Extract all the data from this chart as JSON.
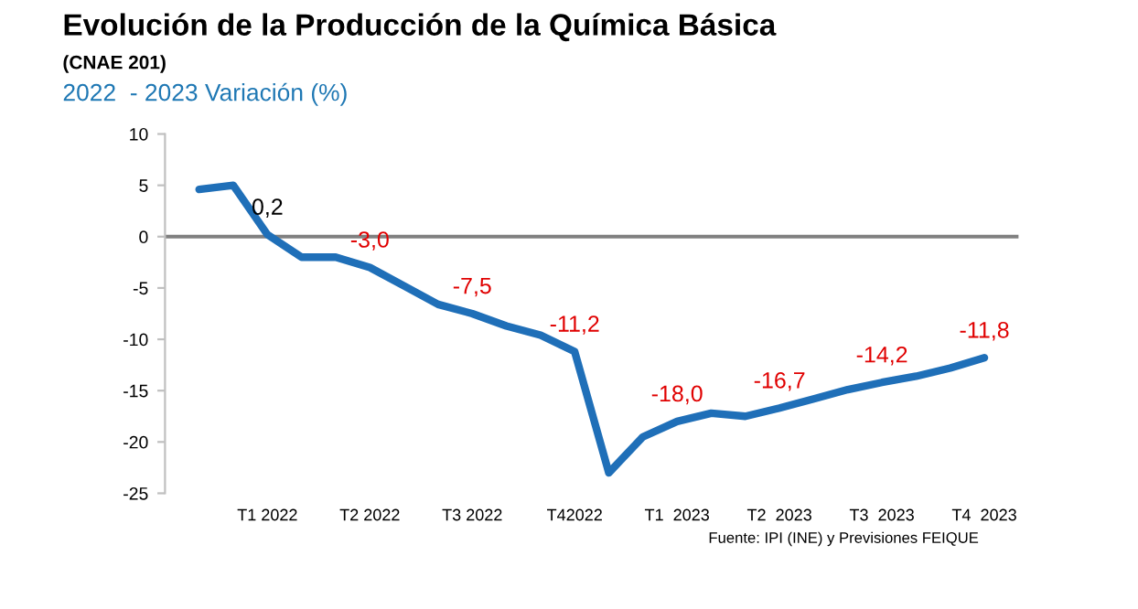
{
  "chart_data": {
    "type": "line",
    "title": "Evolución de la Producción de la Química Básica",
    "subtitle": "(CNAE 201)",
    "ylabel": "2022  - 2023 Variación (%)",
    "categories": [
      null,
      null,
      "T1 2022",
      null,
      null,
      "T2 2022",
      null,
      null,
      "T3 2022",
      null,
      null,
      "T42022",
      null,
      null,
      "T1  2023",
      null,
      null,
      "T2  2023",
      null,
      null,
      "T3  2023",
      null,
      null,
      "T4  2023"
    ],
    "series": [
      {
        "color": "#1f6fb8",
        "values": [
          4.6,
          5.0,
          0.2,
          -2.0,
          -2.0,
          -3.0,
          -4.8,
          -6.6,
          -7.5,
          -8.7,
          -9.6,
          -11.2,
          -23.0,
          -19.5,
          -18.0,
          -17.2,
          -17.5,
          -16.7,
          -15.8,
          -14.9,
          -14.2,
          -13.6,
          -12.8,
          -11.8
        ],
        "value_labels": [
          null,
          null,
          "0,2",
          null,
          null,
          "-3,0",
          null,
          null,
          "-7,5",
          null,
          null,
          "-11,2",
          null,
          null,
          "-18,0",
          null,
          null,
          "-16,7",
          null,
          null,
          "-14,2",
          null,
          null,
          "-11,8"
        ]
      }
    ],
    "ylim": [
      -25,
      10
    ],
    "yticks": [
      -25,
      -20,
      -15,
      -10,
      -5,
      0,
      5,
      10
    ],
    "ref_lines": [
      {
        "axis": "y",
        "value": 0,
        "color": "#808080"
      }
    ],
    "grid": false,
    "marker": "none",
    "line_style": "solid",
    "annotations": [
      "Fuente: IPI (INE) y Previsiones FEIQUE"
    ]
  }
}
